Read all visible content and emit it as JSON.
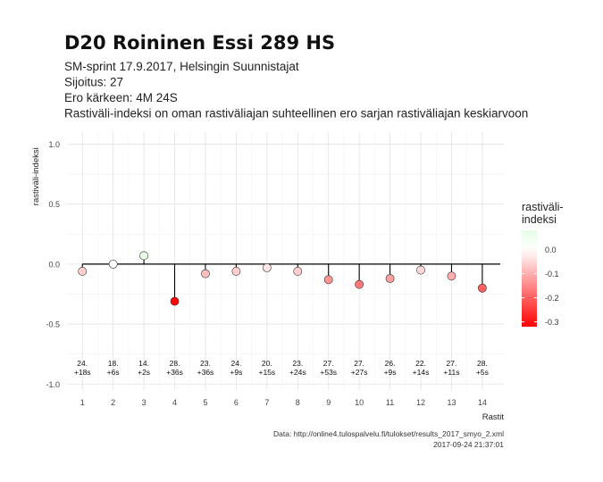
{
  "chart_data": {
    "type": "scatter",
    "title": "D20 Roininen Essi 289 HS",
    "subtitle": [
      "SM-sprint 17.9.2017, Helsingin Suunnistajat",
      "Sijoitus: 27",
      "Ero kärkeen: 4M 24S",
      "Rastiväli-indeksi on oman rastiväliajan suhteellinen ero sarjan rastiväliajan keskiarvoon"
    ],
    "xlabel": "Rastit",
    "ylabel": "rastiväli-indeksi",
    "ylim": [
      -1.05,
      1.1
    ],
    "xlim": [
      0.5,
      14.7
    ],
    "yticks": [
      -1.0,
      -0.5,
      0.0,
      0.5,
      1.0
    ],
    "ytick_labels": [
      "-1.0",
      "-0.5",
      "0.0",
      "0.5",
      "1.0"
    ],
    "xticks": [
      "1",
      "2",
      "3",
      "4",
      "5",
      "6",
      "7",
      "8",
      "9",
      "10",
      "11",
      "12",
      "13",
      "14"
    ],
    "x": [
      1,
      2,
      3,
      4,
      5,
      6,
      7,
      8,
      9,
      10,
      11,
      12,
      13,
      14
    ],
    "values": [
      -0.06,
      0.0,
      0.07,
      -0.31,
      -0.08,
      -0.06,
      -0.03,
      -0.06,
      -0.13,
      -0.17,
      -0.12,
      -0.05,
      -0.1,
      -0.2
    ],
    "split_labels": [
      [
        "24.",
        "+18s"
      ],
      [
        "18.",
        "+6s"
      ],
      [
        "14.",
        "+2s"
      ],
      [
        "28.",
        "+36s"
      ],
      [
        "23.",
        "+36s"
      ],
      [
        "24.",
        "+9s"
      ],
      [
        "20.",
        "+15s"
      ],
      [
        "23.",
        "+24s"
      ],
      [
        "27.",
        "+53s"
      ],
      [
        "27.",
        "+27s"
      ],
      [
        "26.",
        "+9s"
      ],
      [
        "22.",
        "+14s"
      ],
      [
        "27.",
        "+11s"
      ],
      [
        "28.",
        "+5s"
      ]
    ],
    "grid": true,
    "legend": {
      "title_lines": [
        "rastiväli-",
        "indeksi"
      ],
      "position": "right",
      "ticks": [
        0.0,
        -0.1,
        -0.2,
        -0.3
      ],
      "tick_labels": [
        "0.0",
        "-0.1",
        "-0.2",
        "-0.3"
      ],
      "range": [
        -0.32,
        0.08
      ]
    },
    "colors": {
      "low": "#ff0000",
      "mid": "#ffffff",
      "high": "#e5ffe5",
      "grid": "#e2e2e2",
      "zero_line": "#000000"
    },
    "caption": [
      "Data: http://online4.tulospalvelu.fi/tulokset/results_2017_smyo_2.xml",
      "2017-09-24 21:37:01"
    ]
  }
}
